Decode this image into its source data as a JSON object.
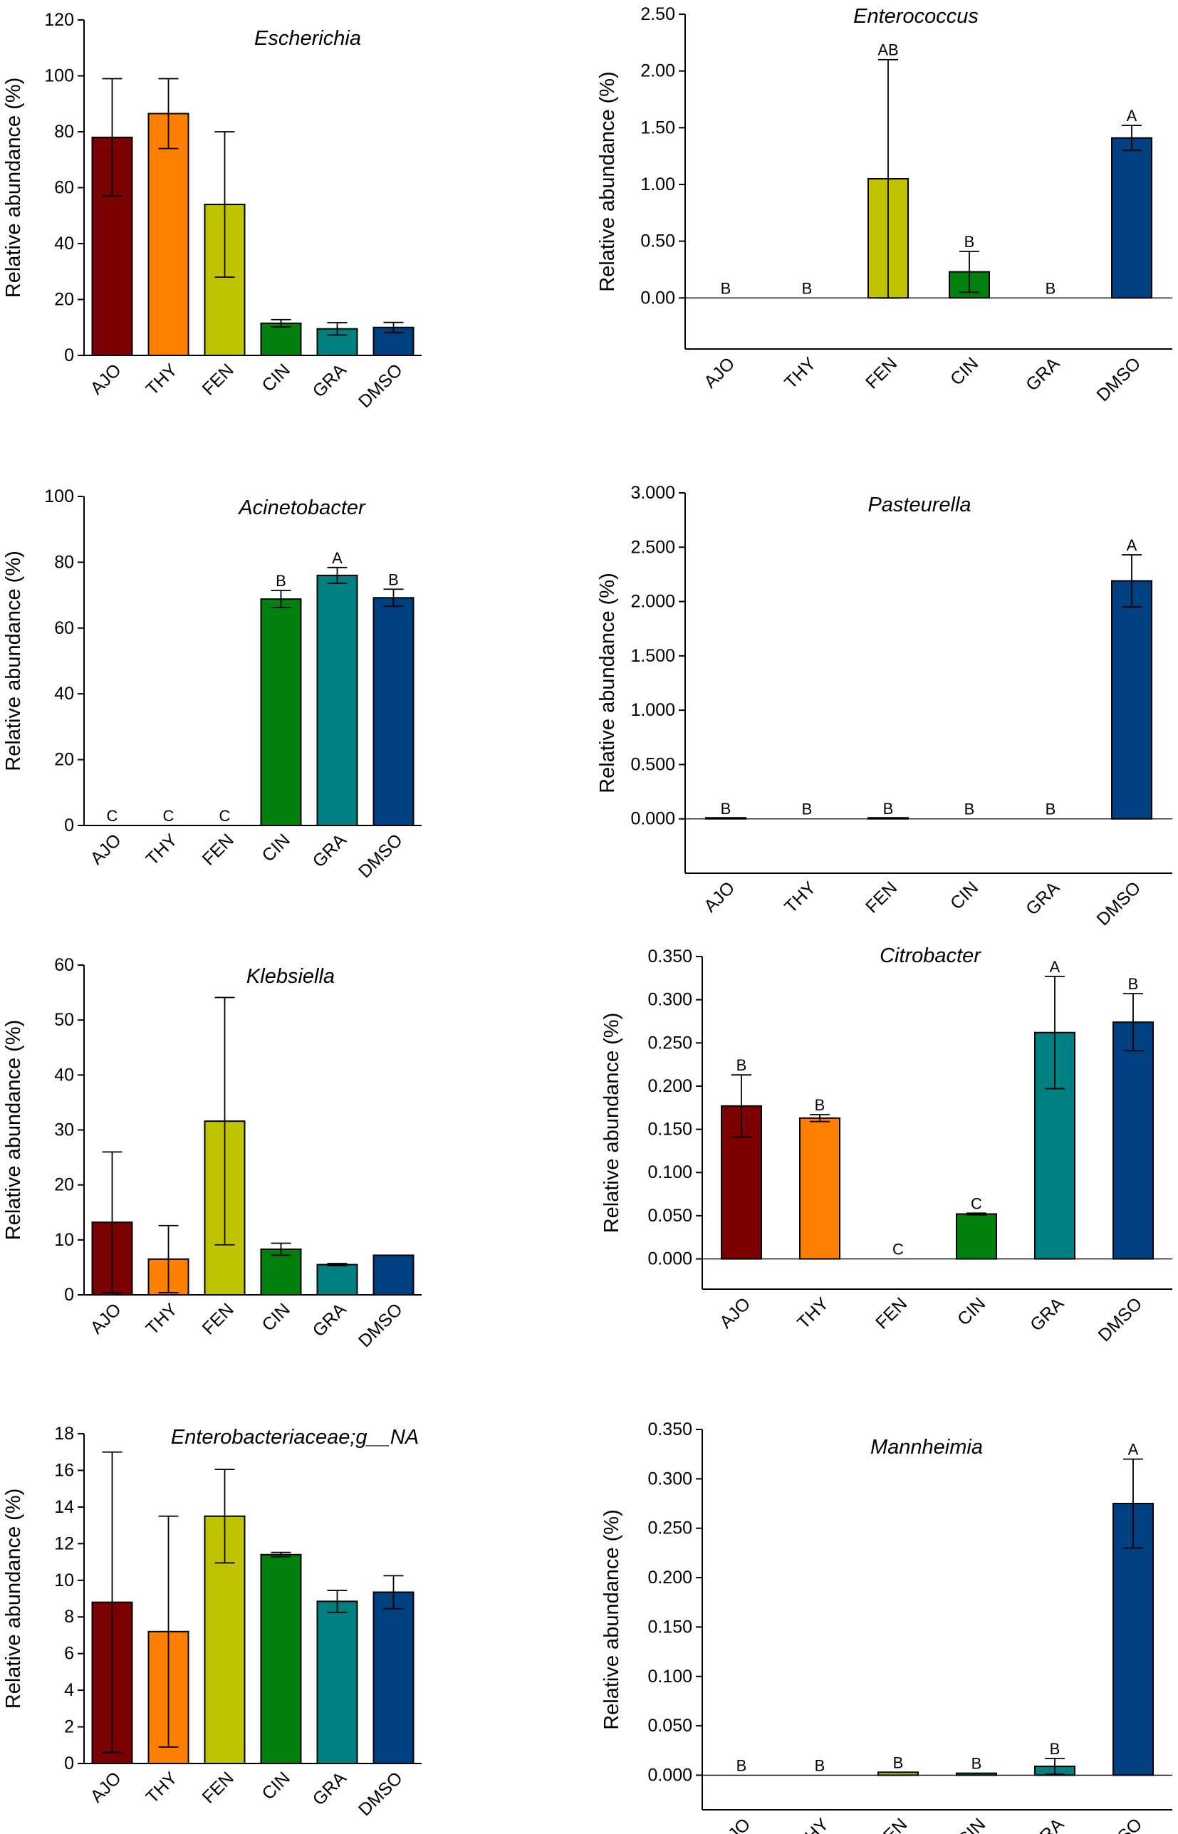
{
  "palette": {
    "AJO": "#7b0000",
    "THY": "#ff8000",
    "FEN": "#bfc300",
    "CIN": "#00800c",
    "GRA": "#008080",
    "DMSO": "#003f80"
  },
  "chart_data": [
    {
      "type": "bar",
      "title": "Escherichia",
      "ylabel": "Relative abundance (%)",
      "categories": [
        "AJO",
        "THY",
        "FEN",
        "CIN",
        "GRA",
        "DMSO"
      ],
      "values": [
        78,
        86.5,
        54,
        11.5,
        9.5,
        10
      ],
      "errors": [
        21,
        12.5,
        26,
        1.3,
        2.2,
        1.8
      ],
      "letters": [
        "",
        "",
        "",
        "",
        "",
        ""
      ],
      "ylim": [
        0,
        120
      ],
      "yticks": [
        "0",
        "20",
        "40",
        "60",
        "80",
        "100",
        "120"
      ]
    },
    {
      "type": "bar",
      "title": "Enterococcus",
      "ylabel": "Relative abundance (%)",
      "categories": [
        "AJO",
        "THY",
        "FEN",
        "CIN",
        "GRA",
        "DMSO"
      ],
      "values": [
        0,
        0,
        1.05,
        0.23,
        0,
        1.41
      ],
      "errors": [
        0,
        0,
        1.05,
        0.18,
        0,
        0.11
      ],
      "letters": [
        "B",
        "B",
        "AB",
        "B",
        "B",
        "A"
      ],
      "ylim": [
        -0.45,
        2.5
      ],
      "yticks": [
        "0.00",
        "0.50",
        "1.00",
        "1.50",
        "2.00",
        "2.50"
      ]
    },
    {
      "type": "bar",
      "title": "Acinetobacter",
      "ylabel": "Relative abundance (%)",
      "categories": [
        "AJO",
        "THY",
        "FEN",
        "CIN",
        "GRA",
        "DMSO"
      ],
      "values": [
        0,
        0,
        0,
        68.8,
        76,
        69.2
      ],
      "errors": [
        0,
        0,
        0,
        2.6,
        2.4,
        2.6
      ],
      "letters": [
        "C",
        "C",
        "C",
        "B",
        "A",
        "B"
      ],
      "ylim": [
        0,
        100
      ],
      "yticks": [
        "0",
        "20",
        "40",
        "60",
        "80",
        "100"
      ]
    },
    {
      "type": "bar",
      "title": "Pasteurella",
      "ylabel": "Relative abundance (%)",
      "categories": [
        "AJO",
        "THY",
        "FEN",
        "CIN",
        "GRA",
        "DMSO"
      ],
      "values": [
        0.005,
        0,
        0.005,
        0,
        0,
        2.19
      ],
      "errors": [
        0,
        0,
        0,
        0,
        0,
        0.24
      ],
      "letters": [
        "B",
        "B",
        "B",
        "B",
        "B",
        "A"
      ],
      "ylim": [
        -0.5,
        3.0
      ],
      "yticks": [
        "0.000",
        "0.500",
        "1.000",
        "1.500",
        "2.000",
        "2.500",
        "3.000"
      ]
    },
    {
      "type": "bar",
      "title": "Klebsiella",
      "ylabel": "Relative abundance (%)",
      "categories": [
        "AJO",
        "THY",
        "FEN",
        "CIN",
        "GRA",
        "DMSO"
      ],
      "values": [
        13.2,
        6.5,
        31.6,
        8.3,
        5.5,
        7.2
      ],
      "errors": [
        12.8,
        6.1,
        22.5,
        1.1,
        0.2,
        0
      ],
      "letters": [
        "",
        "",
        "",
        "",
        "",
        ""
      ],
      "ylim": [
        0,
        60
      ],
      "yticks": [
        "0",
        "10",
        "20",
        "30",
        "40",
        "50",
        "60"
      ]
    },
    {
      "type": "bar",
      "title": "Citrobacter",
      "ylabel": "Relative abundance (%)",
      "categories": [
        "AJO",
        "THY",
        "FEN",
        "CIN",
        "GRA",
        "DMSO"
      ],
      "values": [
        0.177,
        0.163,
        0,
        0.052,
        0.262,
        0.274
      ],
      "errors": [
        0.036,
        0.004,
        0,
        0.001,
        0.065,
        0.033
      ],
      "letters": [
        "B",
        "B",
        "C",
        "C",
        "A",
        "B"
      ],
      "ylim": [
        -0.035,
        0.35
      ],
      "yticks": [
        "0.000",
        "0.050",
        "0.100",
        "0.150",
        "0.200",
        "0.250",
        "0.300",
        "0.350"
      ]
    },
    {
      "type": "bar",
      "title": "Enterobacteriaceae;g__NA",
      "ylabel": "Relative abundance (%)",
      "categories": [
        "AJO",
        "THY",
        "FEN",
        "CIN",
        "GRA",
        "DMSO"
      ],
      "values": [
        8.8,
        7.2,
        13.5,
        11.4,
        8.85,
        9.35
      ],
      "errors": [
        8.2,
        6.3,
        2.55,
        0.12,
        0.6,
        0.9
      ],
      "letters": [
        "",
        "",
        "",
        "",
        "",
        ""
      ],
      "ylim": [
        0,
        18
      ],
      "yticks": [
        "0",
        "2",
        "4",
        "6",
        "8",
        "10",
        "12",
        "14",
        "16",
        "18"
      ]
    },
    {
      "type": "bar",
      "title": "Mannheimia",
      "ylabel": "Relative abundance (%)",
      "categories": [
        "AJO",
        "THY",
        "FEN",
        "CIN",
        "GRA",
        "DMSO"
      ],
      "values": [
        0,
        0,
        0.003,
        0.002,
        0.009,
        0.275
      ],
      "errors": [
        0,
        0,
        0,
        0,
        0.008,
        0.045
      ],
      "letters": [
        "B",
        "B",
        "B",
        "B",
        "B",
        "A"
      ],
      "ylim": [
        -0.035,
        0.35
      ],
      "yticks": [
        "0.000",
        "0.050",
        "0.100",
        "0.150",
        "0.200",
        "0.250",
        "0.300",
        "0.350"
      ]
    }
  ]
}
